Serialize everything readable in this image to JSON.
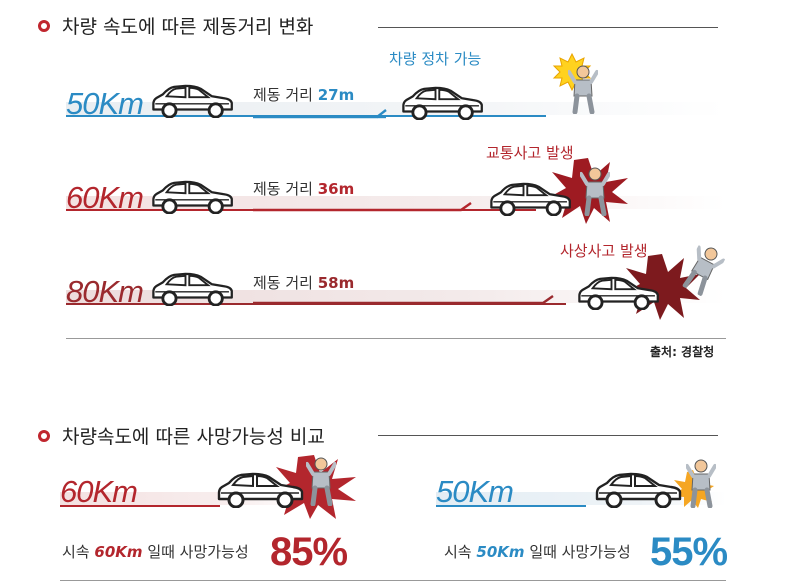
{
  "section1": {
    "title": "차량 속도에 따른 제동거리 변화",
    "source": "출처: 경찰청",
    "lanes": [
      {
        "speed": "50Km",
        "distance_label": "제동 거리",
        "distance_value": "27m",
        "event": "차량 정차 가능",
        "color": "#2b8bc4"
      },
      {
        "speed": "60Km",
        "distance_label": "제동 거리",
        "distance_value": "36m",
        "event": "교통사고 발생",
        "color": "#b3262d"
      },
      {
        "speed": "80Km",
        "distance_label": "제동 거리",
        "distance_value": "58m",
        "event": "사상사고 발생",
        "color": "#9a2a2e"
      }
    ]
  },
  "section2": {
    "title": "차량속도에 따른 사망가능성 비교",
    "items": [
      {
        "speed": "60Km",
        "prefix": "시속",
        "speed_emph": "60Km",
        "suffix": "일때 사망가능성",
        "percent": "85%",
        "color": "#b3262d"
      },
      {
        "speed": "50Km",
        "prefix": "시속",
        "speed_emph": "50Km",
        "suffix": "일때 사망가능성",
        "percent": "55%",
        "color": "#2b8bc4"
      }
    ]
  }
}
